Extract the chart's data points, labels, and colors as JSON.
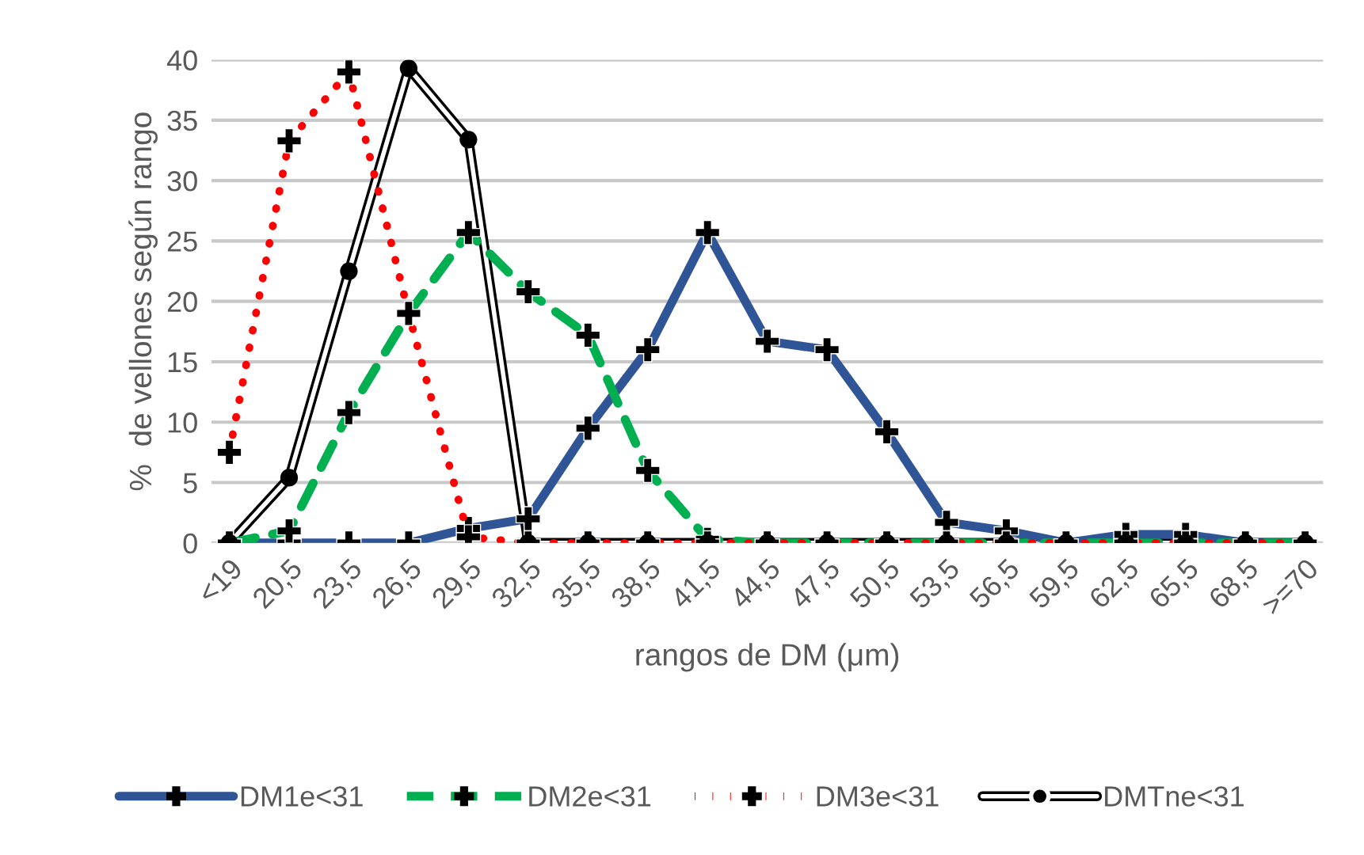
{
  "chart_data": {
    "type": "line",
    "xlabel": "rangos de DM (μm)",
    "ylabel": "%  de vellones según rango",
    "categories": [
      "<19",
      "20,5",
      "23,5",
      "26,5",
      "29,5",
      "32,5",
      "35,5",
      "38,5",
      "41,5",
      "44,5",
      "47,5",
      "50,5",
      "53,5",
      "56,5",
      "59,5",
      "62,5",
      "65,5",
      "68,5",
      ">=70"
    ],
    "series": [
      {
        "name": "DM1e<31",
        "color": "#2f5597",
        "line_style": "solid",
        "marker": "cross",
        "values": [
          0,
          0,
          0,
          0,
          1.2,
          2,
          9.5,
          16,
          25.7,
          16.7,
          16,
          9.2,
          1.7,
          1,
          0,
          0.7,
          0.7,
          0,
          0
        ]
      },
      {
        "name": "DM2e<31",
        "color": "#00b050",
        "line_style": "dashed",
        "marker": "cross",
        "values": [
          0,
          1,
          10.8,
          19,
          25.7,
          20.8,
          17.2,
          6,
          0.3,
          0,
          0,
          0,
          0,
          0,
          0,
          0,
          0,
          0,
          0
        ]
      },
      {
        "name": "DM3e<31",
        "color": "#ff0000",
        "line_style": "dotted",
        "marker": "cross",
        "values": [
          7.5,
          33.3,
          39,
          19,
          0.5,
          0,
          0,
          0,
          0,
          0,
          0,
          0,
          0,
          0,
          0,
          0,
          0,
          0,
          0
        ]
      },
      {
        "name": "DMTne<31",
        "color": "#000000",
        "line_style": "solid",
        "marker": "circle",
        "values": [
          0,
          5.4,
          22.5,
          39.3,
          33.4,
          0,
          0,
          0,
          0,
          0,
          0,
          0,
          0,
          0,
          0,
          0,
          0,
          0,
          0
        ]
      }
    ],
    "ylim": [
      0,
      40
    ],
    "yticks": [
      0,
      5,
      10,
      15,
      20,
      25,
      30,
      35,
      40
    ],
    "grid": "y",
    "legend": "bottom"
  }
}
